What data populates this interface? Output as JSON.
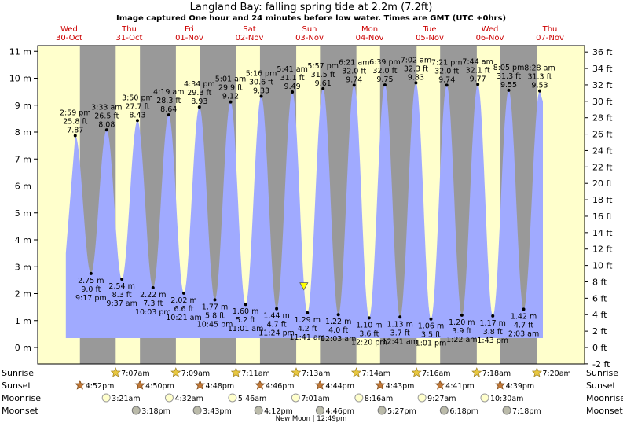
{
  "header": {
    "title": "Langland Bay: falling  spring tide at 2.2m (7.2ft)",
    "subtitle": "Image captured One hour and 24 minutes before low water. Times are GMT (UTC +0hrs)"
  },
  "days": [
    {
      "name": "Wed",
      "date": "30-Oct"
    },
    {
      "name": "Thu",
      "date": "31-Oct"
    },
    {
      "name": "Fri",
      "date": "01-Nov"
    },
    {
      "name": "Sat",
      "date": "02-Nov"
    },
    {
      "name": "Sun",
      "date": "03-Nov"
    },
    {
      "name": "Mon",
      "date": "04-Nov"
    },
    {
      "name": "Tue",
      "date": "05-Nov"
    },
    {
      "name": "Wed",
      "date": "06-Nov"
    },
    {
      "name": "Thu",
      "date": "07-Nov"
    }
  ],
  "rows": {
    "sunrise": "Sunrise",
    "sunset": "Sunset",
    "moonrise": "Moonrise",
    "moonset": "Moonset"
  },
  "sunrise": [
    "7:07am",
    "7:09am",
    "7:11am",
    "7:13am",
    "7:14am",
    "7:16am",
    "7:18am",
    "7:20am"
  ],
  "sunset": [
    "4:52pm",
    "4:50pm",
    "4:48pm",
    "4:46pm",
    "4:44pm",
    "4:43pm",
    "4:41pm",
    "4:39pm"
  ],
  "moonrise": [
    "3:21am",
    "4:32am",
    "5:46am",
    "7:01am",
    "8:16am",
    "9:27am",
    "10:30am"
  ],
  "moonset": [
    "3:18pm",
    "3:43pm",
    "4:12pm",
    "4:46pm",
    "5:27pm",
    "6:18pm",
    "7:18pm"
  ],
  "footer": {
    "new_moon": "New Moon | 12:49pm"
  },
  "colors": {
    "water": "#a0aaff",
    "day": "#ffffcc",
    "night": "#999999",
    "date": "#cc0000",
    "marker": "#ffff00"
  },
  "chart_data": {
    "type": "area",
    "y_left_unit": "m",
    "y_right_unit": "ft",
    "ylim_m": [
      -0.6,
      11.5
    ],
    "yticks_m": [
      0,
      1,
      2,
      3,
      4,
      5,
      6,
      7,
      8,
      9,
      10,
      11
    ],
    "yticks_ft": [
      -2,
      0,
      2,
      4,
      6,
      8,
      10,
      12,
      14,
      16,
      18,
      20,
      22,
      24,
      26,
      28,
      30,
      32,
      34,
      36
    ],
    "x_start": "30-Oct 00:00",
    "x_end": "07-Nov 24:00",
    "current_level_m": 2.2,
    "current_time": "03-Nov 10:17",
    "high_tides": [
      {
        "time": "2:59 pm",
        "day": 0,
        "m": 7.87,
        "ft": "25.8 ft",
        "m_label": "7.87"
      },
      {
        "time": "3:33 am",
        "day": 1,
        "m": 8.08,
        "ft": "26.5 ft",
        "m_label": "8.08"
      },
      {
        "time": "3:50 pm",
        "day": 1,
        "m": 8.43,
        "ft": "27.7 ft",
        "m_label": "8.43"
      },
      {
        "time": "4:19 am",
        "day": 2,
        "m": 8.64,
        "ft": "28.3 ft",
        "m_label": "8.64"
      },
      {
        "time": "4:34 pm",
        "day": 2,
        "m": 8.93,
        "ft": "29.3 ft",
        "m_label": "8.93"
      },
      {
        "time": "5:01 am",
        "day": 3,
        "m": 9.12,
        "ft": "29.9 ft",
        "m_label": "9.12"
      },
      {
        "time": "5:16 pm",
        "day": 3,
        "m": 9.33,
        "ft": "30.6 ft",
        "m_label": "9.33"
      },
      {
        "time": "5:41 am",
        "day": 4,
        "m": 9.49,
        "ft": "31.1 ft",
        "m_label": "9.49"
      },
      {
        "time": "5:57 pm",
        "day": 4,
        "m": 9.61,
        "ft": "31.5 ft",
        "m_label": "9.61"
      },
      {
        "time": "6:21 am",
        "day": 5,
        "m": 9.74,
        "ft": "32.0 ft",
        "m_label": "9.74"
      },
      {
        "time": "6:39 pm",
        "day": 5,
        "m": 9.75,
        "ft": "32.0 ft",
        "m_label": "9.75"
      },
      {
        "time": "7:02 am",
        "day": 6,
        "m": 9.83,
        "ft": "32.3 ft",
        "m_label": "9.83"
      },
      {
        "time": "7:21 pm",
        "day": 6,
        "m": 9.74,
        "ft": "32.0 ft",
        "m_label": "9.74"
      },
      {
        "time": "7:44 am",
        "day": 7,
        "m": 9.77,
        "ft": "32.1 ft",
        "m_label": "9.77"
      },
      {
        "time": "8:05 pm",
        "day": 7,
        "m": 9.55,
        "ft": "31.3 ft",
        "m_label": "9.55"
      },
      {
        "time": "8:28 am",
        "day": 8,
        "m": 9.53,
        "ft": "31.3 ft",
        "m_label": "9.53"
      }
    ],
    "low_tides": [
      {
        "time": "9:17 pm",
        "day": 0,
        "m": 2.75,
        "ft": "9.0 ft",
        "m_label": "2.75 m"
      },
      {
        "time": "9:37 am",
        "day": 1,
        "m": 2.54,
        "ft": "8.3 ft",
        "m_label": "2.54 m"
      },
      {
        "time": "10:03 pm",
        "day": 1,
        "m": 2.22,
        "ft": "7.3 ft",
        "m_label": "2.22 m"
      },
      {
        "time": "10:21 am",
        "day": 2,
        "m": 2.02,
        "ft": "6.6 ft",
        "m_label": "2.02 m"
      },
      {
        "time": "10:45 pm",
        "day": 2,
        "m": 1.77,
        "ft": "5.8 ft",
        "m_label": "1.77 m"
      },
      {
        "time": "11:01 am",
        "day": 3,
        "m": 1.6,
        "ft": "5.2 ft",
        "m_label": "1.60 m"
      },
      {
        "time": "11:24 pm",
        "day": 3,
        "m": 1.44,
        "ft": "4.7 ft",
        "m_label": "1.44 m"
      },
      {
        "time": "11:41 am",
        "day": 4,
        "m": 1.29,
        "ft": "4.2 ft",
        "m_label": "1.29 m"
      },
      {
        "time": "12:03 am",
        "day": 5,
        "m": 1.22,
        "ft": "4.0 ft",
        "m_label": "1.22 m"
      },
      {
        "time": "12:20 pm",
        "day": 5,
        "m": 1.1,
        "ft": "3.6 ft",
        "m_label": "1.10 m"
      },
      {
        "time": "12:41 am",
        "day": 6,
        "m": 1.13,
        "ft": "3.7 ft",
        "m_label": "1.13 m"
      },
      {
        "time": "1:01 pm",
        "day": 6,
        "m": 1.06,
        "ft": "3.5 ft",
        "m_label": "1.06 m"
      },
      {
        "time": "1:22 am",
        "day": 7,
        "m": 1.2,
        "ft": "3.9 ft",
        "m_label": "1.20 m"
      },
      {
        "time": "1:43 pm",
        "day": 7,
        "m": 1.17,
        "ft": "3.8 ft",
        "m_label": "1.17 m"
      },
      {
        "time": "2:03 am",
        "day": 8,
        "m": 1.42,
        "ft": "4.7 ft",
        "m_label": "1.42 m"
      }
    ],
    "sunrise_times": [
      "7:07am",
      "7:09am",
      "7:11am",
      "7:13am",
      "7:14am",
      "7:16am",
      "7:18am",
      "7:20am"
    ],
    "sunset_times": [
      "4:52pm",
      "4:50pm",
      "4:48pm",
      "4:46pm",
      "4:44pm",
      "4:43pm",
      "4:41pm",
      "4:39pm"
    ],
    "moonrise_times": [
      "3:21am",
      "4:32am",
      "5:46am",
      "7:01am",
      "8:16am",
      "9:27am",
      "10:30am"
    ],
    "moonset_times": [
      "3:18pm",
      "3:43pm",
      "4:12pm",
      "4:46pm",
      "5:27pm",
      "6:18pm",
      "7:18pm"
    ],
    "grid": false
  }
}
